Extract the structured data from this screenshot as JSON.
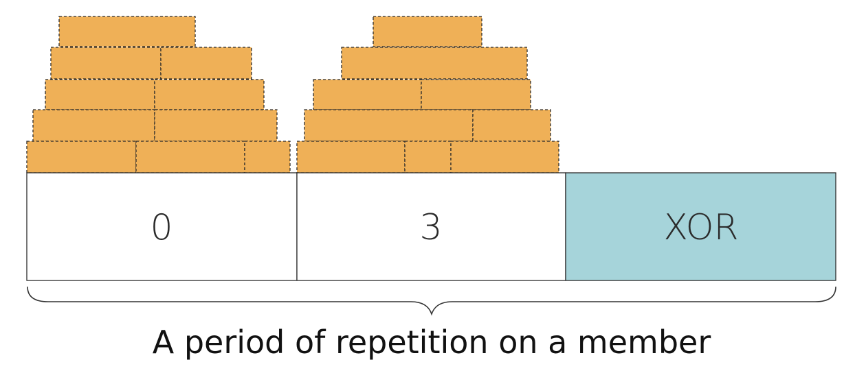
{
  "cells": [
    {
      "label": "0",
      "fill": "#ffffff"
    },
    {
      "label": "3",
      "fill": "#ffffff"
    },
    {
      "label": "XOR",
      "fill": "#a6d4da"
    }
  ],
  "caption": "A period of repetition on a member",
  "colors": {
    "brick": "#efb057",
    "outline": "#2b2b2b",
    "xor_cell": "#a6d4da"
  }
}
